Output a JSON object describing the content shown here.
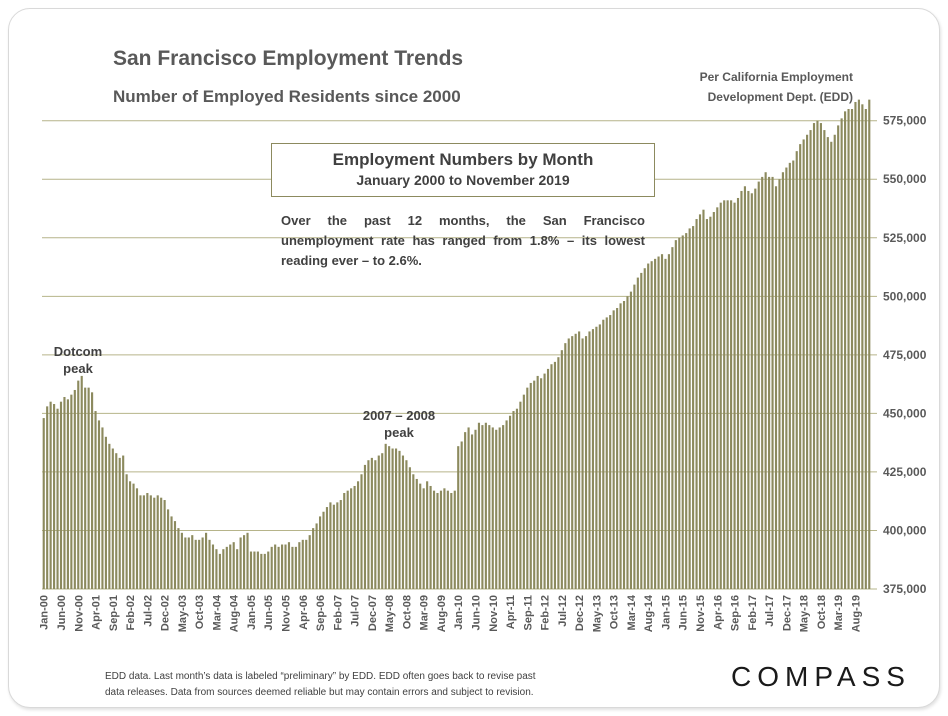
{
  "header": {
    "title": "San Francisco Employment Trends",
    "subtitle": "Number of Employed Residents since 2000",
    "source_line1": "Per California Employment",
    "source_line2": "Development Dept. (EDD)"
  },
  "box": {
    "title": "Employment Numbers by Month",
    "subtitle": "January 2000 to November 2019"
  },
  "note": "Over the past 12 months, the San Francisco unemployment rate has ranged from 1.8% – its lowest reading ever – to 2.6%.",
  "annotations": {
    "dotcom_line1": "Dotcom",
    "dotcom_line2": "peak",
    "peak2008_line1": "2007 – 2008",
    "peak2008_line2": "peak"
  },
  "footer": {
    "line1": "EDD data. Last month’s data is labeled “preliminary” by EDD. EDD often goes back to revise past",
    "line2": "data releases. Data from sources deemed reliable but may contain errors and subject to revision."
  },
  "logo": "COMPASS",
  "colors": {
    "bar": "#8c8a5e",
    "grid": "#b6b48a",
    "axis_text": "#595959"
  },
  "chart_data": {
    "type": "bar",
    "title": "Employment Numbers by Month",
    "x_start": "2000-01",
    "x_end": "2019-11",
    "ylim": [
      375000,
      580000
    ],
    "yticks": [
      375000,
      400000,
      425000,
      450000,
      475000,
      500000,
      525000,
      550000,
      575000
    ],
    "ytick_labels": [
      "375,000",
      "400,000",
      "425,000",
      "450,000",
      "475,000",
      "500,000",
      "525,000",
      "550,000",
      "575,000"
    ],
    "xtick_labels": [
      "Jan-00",
      "Jun-00",
      "Nov-00",
      "Apr-01",
      "Sep-01",
      "Feb-02",
      "Jul-02",
      "Dec-02",
      "May-03",
      "Oct-03",
      "Mar-04",
      "Aug-04",
      "Jan-05",
      "Jun-05",
      "Nov-05",
      "Apr-06",
      "Sep-06",
      "Feb-07",
      "Jul-07",
      "Dec-07",
      "May-08",
      "Oct-08",
      "Mar-09",
      "Aug-09",
      "Jan-10",
      "Jun-10",
      "Nov-10",
      "Apr-11",
      "Sep-11",
      "Feb-12",
      "Jul-12",
      "Dec-12",
      "May-13",
      "Oct-13",
      "Mar-14",
      "Aug-14",
      "Jan-15",
      "Jun-15",
      "Nov-15",
      "Apr-16",
      "Sep-16",
      "Feb-17",
      "Jul-17",
      "Dec-17",
      "May-18",
      "Oct-18",
      "Mar-19",
      "Aug-19"
    ],
    "xtick_step_months": 5,
    "grid": true,
    "anchors": [
      [
        0,
        448000
      ],
      [
        1,
        453000
      ],
      [
        2,
        455000
      ],
      [
        3,
        454000
      ],
      [
        4,
        452000
      ],
      [
        5,
        455000
      ],
      [
        6,
        457000
      ],
      [
        7,
        456000
      ],
      [
        8,
        458000
      ],
      [
        9,
        460000
      ],
      [
        10,
        464000
      ],
      [
        11,
        466000
      ],
      [
        12,
        461000
      ],
      [
        13,
        461000
      ],
      [
        14,
        459000
      ],
      [
        15,
        451000
      ],
      [
        16,
        447000
      ],
      [
        17,
        444000
      ],
      [
        18,
        440000
      ],
      [
        19,
        437000
      ],
      [
        20,
        435000
      ],
      [
        21,
        433000
      ],
      [
        22,
        431000
      ],
      [
        23,
        432000
      ],
      [
        24,
        424000
      ],
      [
        25,
        421000
      ],
      [
        26,
        420000
      ],
      [
        27,
        418000
      ],
      [
        28,
        415000
      ],
      [
        29,
        415000
      ],
      [
        30,
        416000
      ],
      [
        31,
        415000
      ],
      [
        32,
        414000
      ],
      [
        33,
        415000
      ],
      [
        34,
        414000
      ],
      [
        35,
        413000
      ],
      [
        36,
        409000
      ],
      [
        37,
        406000
      ],
      [
        38,
        404000
      ],
      [
        39,
        401000
      ],
      [
        40,
        399000
      ],
      [
        41,
        397000
      ],
      [
        42,
        397000
      ],
      [
        43,
        398000
      ],
      [
        44,
        396000
      ],
      [
        45,
        396000
      ],
      [
        46,
        397000
      ],
      [
        47,
        399000
      ],
      [
        48,
        396000
      ],
      [
        49,
        394000
      ],
      [
        50,
        392000
      ],
      [
        51,
        390000
      ],
      [
        52,
        392000
      ],
      [
        53,
        393000
      ],
      [
        54,
        394000
      ],
      [
        55,
        395000
      ],
      [
        56,
        392000
      ],
      [
        57,
        397000
      ],
      [
        58,
        398000
      ],
      [
        59,
        399000
      ],
      [
        60,
        391000
      ],
      [
        61,
        391000
      ],
      [
        62,
        391000
      ],
      [
        63,
        390000
      ],
      [
        64,
        390000
      ],
      [
        65,
        391000
      ],
      [
        66,
        393000
      ],
      [
        67,
        394000
      ],
      [
        68,
        393000
      ],
      [
        69,
        394000
      ],
      [
        70,
        394000
      ],
      [
        71,
        395000
      ],
      [
        72,
        393000
      ],
      [
        73,
        393000
      ],
      [
        74,
        395000
      ],
      [
        75,
        396000
      ],
      [
        76,
        396000
      ],
      [
        77,
        398000
      ],
      [
        78,
        401000
      ],
      [
        79,
        403000
      ],
      [
        80,
        406000
      ],
      [
        81,
        408000
      ],
      [
        82,
        410000
      ],
      [
        83,
        412000
      ],
      [
        84,
        411000
      ],
      [
        85,
        412000
      ],
      [
        86,
        413000
      ],
      [
        87,
        416000
      ],
      [
        88,
        417000
      ],
      [
        89,
        418000
      ],
      [
        90,
        419000
      ],
      [
        91,
        421000
      ],
      [
        92,
        424000
      ],
      [
        93,
        428000
      ],
      [
        94,
        430000
      ],
      [
        95,
        431000
      ],
      [
        96,
        430000
      ],
      [
        97,
        432000
      ],
      [
        98,
        433000
      ],
      [
        99,
        437000
      ],
      [
        100,
        436000
      ],
      [
        101,
        435000
      ],
      [
        102,
        435000
      ],
      [
        103,
        434000
      ],
      [
        104,
        432000
      ],
      [
        105,
        430000
      ],
      [
        106,
        427000
      ],
      [
        107,
        424000
      ],
      [
        108,
        422000
      ],
      [
        109,
        420000
      ],
      [
        110,
        418000
      ],
      [
        111,
        421000
      ],
      [
        112,
        419000
      ],
      [
        113,
        417000
      ],
      [
        114,
        416000
      ],
      [
        115,
        417000
      ],
      [
        116,
        418000
      ],
      [
        117,
        417000
      ],
      [
        118,
        416000
      ],
      [
        119,
        417000
      ],
      [
        120,
        436000
      ],
      [
        121,
        438000
      ],
      [
        122,
        442000
      ],
      [
        123,
        444000
      ],
      [
        124,
        441000
      ],
      [
        125,
        443000
      ],
      [
        126,
        446000
      ],
      [
        127,
        445000
      ],
      [
        128,
        446000
      ],
      [
        129,
        445000
      ],
      [
        130,
        444000
      ],
      [
        131,
        443000
      ],
      [
        132,
        444000
      ],
      [
        133,
        445000
      ],
      [
        134,
        447000
      ],
      [
        135,
        449000
      ],
      [
        136,
        451000
      ],
      [
        137,
        452000
      ],
      [
        138,
        455000
      ],
      [
        139,
        458000
      ],
      [
        140,
        461000
      ],
      [
        141,
        463000
      ],
      [
        142,
        464000
      ],
      [
        143,
        466000
      ],
      [
        144,
        465000
      ],
      [
        145,
        467000
      ],
      [
        146,
        469000
      ],
      [
        147,
        471000
      ],
      [
        148,
        472000
      ],
      [
        149,
        474000
      ],
      [
        150,
        477000
      ],
      [
        151,
        480000
      ],
      [
        152,
        482000
      ],
      [
        153,
        483000
      ],
      [
        154,
        484000
      ],
      [
        155,
        485000
      ],
      [
        156,
        482000
      ],
      [
        157,
        483000
      ],
      [
        158,
        485000
      ],
      [
        159,
        486000
      ],
      [
        160,
        487000
      ],
      [
        161,
        488000
      ],
      [
        162,
        490000
      ],
      [
        163,
        491000
      ],
      [
        164,
        492000
      ],
      [
        165,
        494000
      ],
      [
        166,
        495000
      ],
      [
        167,
        497000
      ],
      [
        168,
        498000
      ],
      [
        169,
        500000
      ],
      [
        170,
        502000
      ],
      [
        171,
        505000
      ],
      [
        172,
        508000
      ],
      [
        173,
        510000
      ],
      [
        174,
        512000
      ],
      [
        175,
        514000
      ],
      [
        176,
        515000
      ],
      [
        177,
        516000
      ],
      [
        178,
        517000
      ],
      [
        179,
        518000
      ],
      [
        180,
        516000
      ],
      [
        181,
        518000
      ],
      [
        182,
        521000
      ],
      [
        183,
        524000
      ],
      [
        184,
        525000
      ],
      [
        185,
        526000
      ],
      [
        186,
        527000
      ],
      [
        187,
        529000
      ],
      [
        188,
        530000
      ],
      [
        189,
        533000
      ],
      [
        190,
        535000
      ],
      [
        191,
        537000
      ],
      [
        192,
        533000
      ],
      [
        193,
        534000
      ],
      [
        194,
        536000
      ],
      [
        195,
        538000
      ],
      [
        196,
        540000
      ],
      [
        197,
        541000
      ],
      [
        198,
        541000
      ],
      [
        199,
        541000
      ],
      [
        200,
        540000
      ],
      [
        201,
        542000
      ],
      [
        202,
        545000
      ],
      [
        203,
        547000
      ],
      [
        204,
        545000
      ],
      [
        205,
        544000
      ],
      [
        206,
        546000
      ],
      [
        207,
        549000
      ],
      [
        208,
        551000
      ],
      [
        209,
        553000
      ],
      [
        210,
        551000
      ],
      [
        211,
        551000
      ],
      [
        212,
        547000
      ],
      [
        213,
        550000
      ],
      [
        214,
        553000
      ],
      [
        215,
        555000
      ],
      [
        216,
        557000
      ],
      [
        217,
        558000
      ],
      [
        218,
        562000
      ],
      [
        219,
        565000
      ],
      [
        220,
        567000
      ],
      [
        221,
        569000
      ],
      [
        222,
        571000
      ],
      [
        223,
        574000
      ],
      [
        224,
        575000
      ],
      [
        225,
        574000
      ],
      [
        226,
        571000
      ],
      [
        227,
        568000
      ],
      [
        228,
        566000
      ],
      [
        229,
        569000
      ],
      [
        230,
        573000
      ],
      [
        231,
        576000
      ],
      [
        232,
        579000
      ],
      [
        233,
        580000
      ],
      [
        234,
        580000
      ],
      [
        235,
        583000
      ],
      [
        236,
        584000
      ],
      [
        237,
        582000
      ],
      [
        238,
        580000
      ],
      [
        239,
        584000
      ]
    ]
  }
}
